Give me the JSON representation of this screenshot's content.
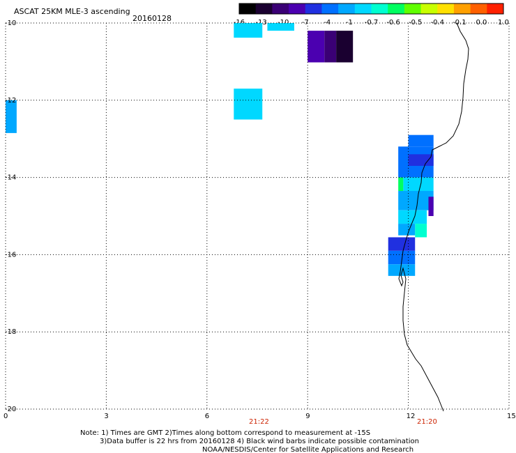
{
  "header": {
    "title": "ASCAT 25KM MLE-3 ascending",
    "date": "20160128"
  },
  "colorbar": {
    "colors": [
      "#000000",
      "#1a0030",
      "#3a0075",
      "#4b00b0",
      "#2030e0",
      "#0070ff",
      "#00a8ff",
      "#00d8ff",
      "#00ffd0",
      "#00ff60",
      "#60ff00",
      "#c8ff00",
      "#ffe000",
      "#ffa000",
      "#ff6000",
      "#ff2000"
    ],
    "labels": [
      "-16",
      "-13",
      "-10",
      "-7",
      "-4",
      "-1",
      "-0.7",
      "-0.6",
      "-0.5",
      "-0.4",
      "-0.1",
      "0.0",
      "1.0"
    ]
  },
  "axes": {
    "y_ticks": [
      "-10",
      "-12",
      "-14",
      "-16",
      "-18",
      "-20"
    ],
    "x_ticks": [
      "0",
      "3",
      "6",
      "9",
      "12",
      "15"
    ],
    "y_range": [
      -10,
      -20
    ],
    "x_range": [
      0,
      15
    ]
  },
  "times": [
    "21:22",
    "21:20"
  ],
  "notes": {
    "line1": "Note: 1) Times are GMT 2)Times along bottom correspond to measurement at -15S",
    "line2": "3)Data buffer is 22 hrs from 20160128 4) Black wind barbs indicate possible contamination",
    "line3": "NOAA/NESDIS/Center for Satellite Applications and Research"
  },
  "cells": [
    {
      "lon": 0.0,
      "lat": -12.0,
      "w": 0.33,
      "h": 0.85,
      "color": "#00a8ff"
    },
    {
      "lon": 6.8,
      "lat": -10.0,
      "w": 0.85,
      "h": 0.38,
      "color": "#00d8ff"
    },
    {
      "lon": 7.8,
      "lat": -10.0,
      "w": 0.8,
      "h": 0.2,
      "color": "#00d8ff"
    },
    {
      "lon": 6.8,
      "lat": -11.7,
      "w": 0.85,
      "h": 0.8,
      "color": "#00d8ff"
    },
    {
      "lon": 9.0,
      "lat": -10.2,
      "w": 0.5,
      "h": 0.82,
      "color": "#4b00b0"
    },
    {
      "lon": 9.5,
      "lat": -10.2,
      "w": 0.35,
      "h": 0.82,
      "color": "#3a0075"
    },
    {
      "lon": 9.85,
      "lat": -10.2,
      "w": 0.5,
      "h": 0.82,
      "color": "#1a0030"
    },
    {
      "lon": 12.0,
      "lat": -12.9,
      "w": 0.75,
      "h": 0.3,
      "color": "#0070ff"
    },
    {
      "lon": 11.7,
      "lat": -13.2,
      "w": 1.05,
      "h": 0.8,
      "color": "#0070ff"
    },
    {
      "lon": 12.0,
      "lat": -13.4,
      "w": 0.75,
      "h": 0.3,
      "color": "#2030e0"
    },
    {
      "lon": 11.7,
      "lat": -14.0,
      "w": 0.15,
      "h": 0.35,
      "color": "#00ff60"
    },
    {
      "lon": 11.85,
      "lat": -14.0,
      "w": 0.9,
      "h": 0.35,
      "color": "#00d8ff"
    },
    {
      "lon": 11.7,
      "lat": -14.35,
      "w": 1.05,
      "h": 0.5,
      "color": "#00a8ff"
    },
    {
      "lon": 12.6,
      "lat": -14.5,
      "w": 0.15,
      "h": 0.5,
      "color": "#4b00b0"
    },
    {
      "lon": 11.7,
      "lat": -14.85,
      "w": 0.85,
      "h": 0.35,
      "color": "#00d8ff"
    },
    {
      "lon": 12.2,
      "lat": -15.2,
      "w": 0.35,
      "h": 0.35,
      "color": "#00ffd0"
    },
    {
      "lon": 11.7,
      "lat": -15.2,
      "w": 0.5,
      "h": 0.3,
      "color": "#00a8ff"
    },
    {
      "lon": 11.4,
      "lat": -15.55,
      "w": 0.8,
      "h": 0.35,
      "color": "#2030e0"
    },
    {
      "lon": 11.4,
      "lat": -15.9,
      "w": 0.8,
      "h": 0.35,
      "color": "#0070ff"
    },
    {
      "lon": 11.4,
      "lat": -16.25,
      "w": 0.8,
      "h": 0.3,
      "color": "#00a8ff"
    }
  ]
}
